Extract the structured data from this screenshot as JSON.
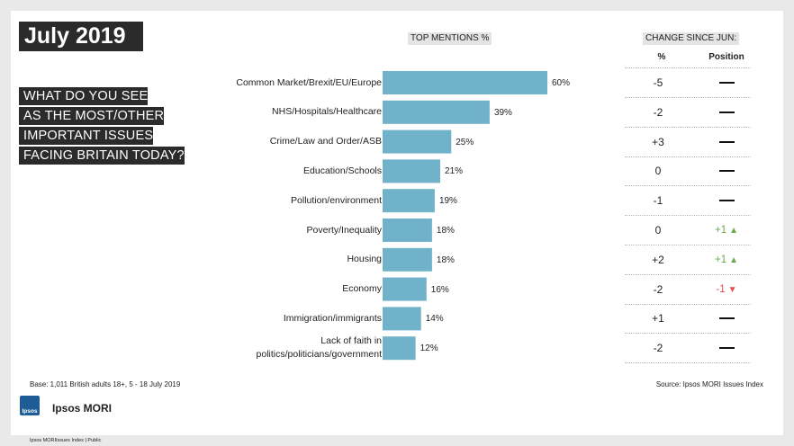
{
  "title": "July 2019",
  "question_lines": [
    "WHAT DO YOU SEE",
    "AS THE MOST/OTHER",
    "IMPORTANT ISSUES",
    "FACING BRITAIN TODAY?"
  ],
  "headers": {
    "top_mentions": "TOP MENTIONS %",
    "change": "CHANGE SINCE JUN:",
    "pct": "%",
    "position": "Position"
  },
  "chart_data": {
    "type": "bar",
    "orientation": "horizontal",
    "title": "TOP MENTIONS %",
    "categories": [
      "Common Market/Brexit/EU/Europe",
      "NHS/Hospitals/Healthcare",
      "Crime/Law and Order/ASB",
      "Education/Schools",
      "Pollution/environment",
      "Poverty/Inequality",
      "Housing",
      "Economy",
      "Immigration/immigrants",
      "Lack of faith in politics/politicians/government"
    ],
    "values": [
      60,
      39,
      25,
      21,
      19,
      18,
      18,
      16,
      14,
      12
    ],
    "value_labels": [
      "60%",
      "39%",
      "25%",
      "21%",
      "19%",
      "18%",
      "18%",
      "16%",
      "14%",
      "12%"
    ],
    "bar_color": "#70b2ca",
    "xlim": [
      0,
      100
    ]
  },
  "category_label_lines": [
    [
      "Common Market/Brexit/EU/Europe"
    ],
    [
      "NHS/Hospitals/Healthcare"
    ],
    [
      "Crime/Law and Order/ASB"
    ],
    [
      "Education/Schools"
    ],
    [
      "Pollution/environment"
    ],
    [
      "Poverty/Inequality"
    ],
    [
      "Housing"
    ],
    [
      "Economy"
    ],
    [
      "Immigration/immigrants"
    ],
    [
      "Lack of faith in",
      "politics/politicians/government"
    ]
  ],
  "changes": [
    "-5",
    "-2",
    "+3",
    "0",
    "-1",
    "0",
    "+2",
    "-2",
    "+1",
    "-2"
  ],
  "positions": [
    {
      "text": "",
      "dir": "none"
    },
    {
      "text": "",
      "dir": "none"
    },
    {
      "text": "",
      "dir": "none"
    },
    {
      "text": "",
      "dir": "none"
    },
    {
      "text": "",
      "dir": "none"
    },
    {
      "text": "+1",
      "dir": "up"
    },
    {
      "text": "+1",
      "dir": "up"
    },
    {
      "text": "-1",
      "dir": "down"
    },
    {
      "text": "",
      "dir": "none"
    },
    {
      "text": "",
      "dir": "none"
    }
  ],
  "colors": {
    "up": "#6aa84f",
    "down": "#e05050"
  },
  "footer": {
    "base": "Base: 1,011 British adults 18+, 5 - 18 July 2019",
    "source": "Source: Ipsos MORI Issues Index",
    "brand": "Ipsos MORI",
    "logo_text": "Ipsos",
    "legal": "Ipsos MORIIssues Index | Public"
  }
}
